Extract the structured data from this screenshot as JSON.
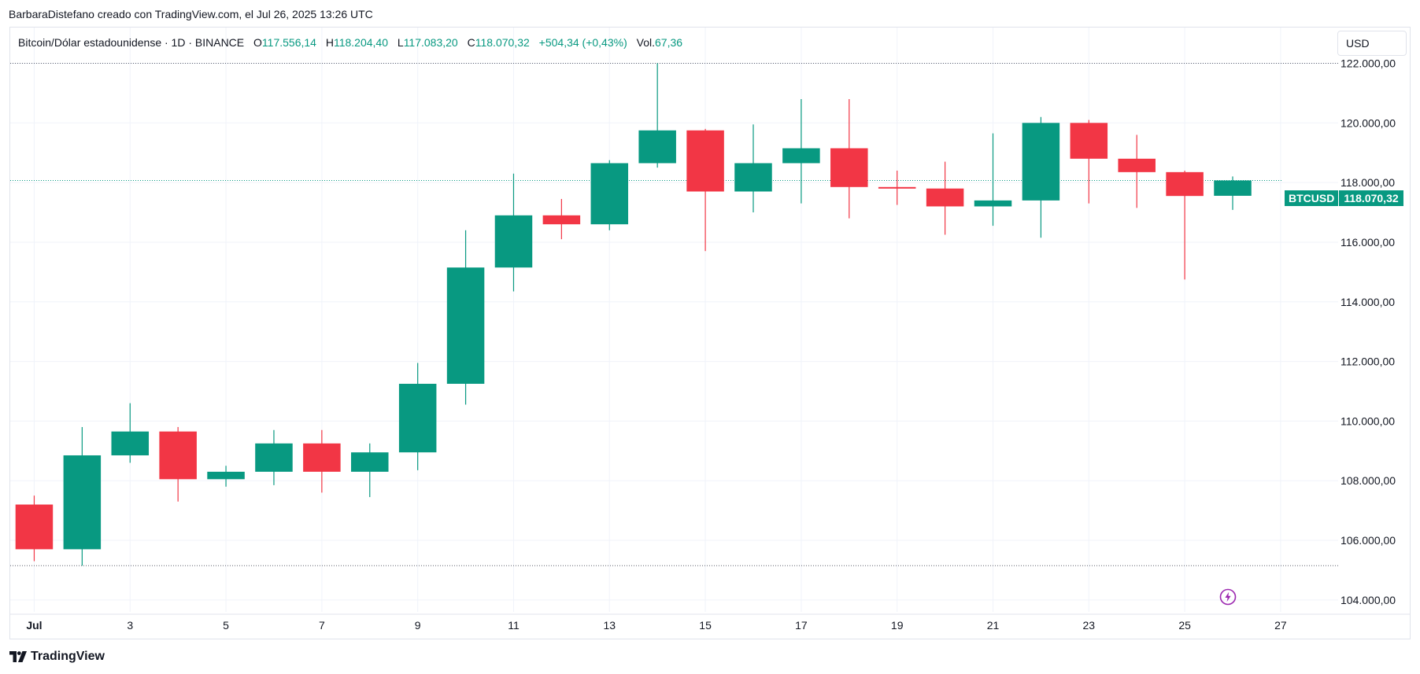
{
  "attribution": "BarbaraDistefano creado con TradingView.com, el Jul 26, 2025 13:26 UTC",
  "legend": {
    "symbol_desc": "Bitcoin/Dólar estadounidense · 1D · BINANCE",
    "o_label": "O",
    "o_value": "117.556,14",
    "h_label": "H",
    "h_value": "118.204,40",
    "l_label": "L",
    "l_value": "117.083,20",
    "c_label": "C",
    "c_value": "118.070,32",
    "change": "+504,34 (+0,43%)",
    "vol_label": "Vol.",
    "vol_value": "67,36"
  },
  "currency_button": "USD",
  "price_tag": {
    "symbol": "BTCUSD",
    "price": "118.070,32"
  },
  "brand": "TradingView",
  "colors": {
    "up": "#089981",
    "down": "#f23645",
    "grid": "#f0f3fa",
    "text": "#131722"
  },
  "icons": {
    "replay": "lightning-replay-icon",
    "logo": "tradingview-logo-icon"
  },
  "chart_data": {
    "type": "candlestick",
    "x_ticks": [
      {
        "day": 1,
        "label": "Jul"
      },
      {
        "day": 3,
        "label": "3"
      },
      {
        "day": 5,
        "label": "5"
      },
      {
        "day": 7,
        "label": "7"
      },
      {
        "day": 9,
        "label": "9"
      },
      {
        "day": 11,
        "label": "11"
      },
      {
        "day": 13,
        "label": "13"
      },
      {
        "day": 15,
        "label": "15"
      },
      {
        "day": 17,
        "label": "17"
      },
      {
        "day": 19,
        "label": "19"
      },
      {
        "day": 21,
        "label": "21"
      },
      {
        "day": 23,
        "label": "23"
      },
      {
        "day": 25,
        "label": "25"
      },
      {
        "day": 27,
        "label": "27"
      }
    ],
    "y_ticks": [
      {
        "value": 104000,
        "label": "104.000,00"
      },
      {
        "value": 106000,
        "label": "106.000,00"
      },
      {
        "value": 108000,
        "label": "108.000,00"
      },
      {
        "value": 110000,
        "label": "110.000,00"
      },
      {
        "value": 112000,
        "label": "112.000,00"
      },
      {
        "value": 114000,
        "label": "114.000,00"
      },
      {
        "value": 116000,
        "label": "116.000,00"
      },
      {
        "value": 118000,
        "label": "118.000,00"
      },
      {
        "value": 120000,
        "label": "120.000,00"
      },
      {
        "value": 122000,
        "label": "122.000,00"
      }
    ],
    "ylim": [
      103600,
      123200
    ],
    "xlim": [
      0.5,
      28.2
    ],
    "high_line": 122000,
    "low_line": 105150,
    "last_price": 118070.32,
    "candles": [
      {
        "day": 1,
        "o": 107200,
        "h": 107500,
        "l": 105300,
        "c": 105700
      },
      {
        "day": 2,
        "o": 105700,
        "h": 109800,
        "l": 105150,
        "c": 108850
      },
      {
        "day": 3,
        "o": 108850,
        "h": 110600,
        "l": 108600,
        "c": 109650
      },
      {
        "day": 4,
        "o": 109650,
        "h": 109800,
        "l": 107300,
        "c": 108050
      },
      {
        "day": 5,
        "o": 108050,
        "h": 108500,
        "l": 107800,
        "c": 108300
      },
      {
        "day": 6,
        "o": 108300,
        "h": 109700,
        "l": 107850,
        "c": 109250
      },
      {
        "day": 7,
        "o": 109250,
        "h": 109700,
        "l": 107600,
        "c": 108300
      },
      {
        "day": 8,
        "o": 108300,
        "h": 109250,
        "l": 107450,
        "c": 108950
      },
      {
        "day": 9,
        "o": 108950,
        "h": 111950,
        "l": 108350,
        "c": 111250
      },
      {
        "day": 10,
        "o": 111250,
        "h": 116400,
        "l": 110550,
        "c": 115150
      },
      {
        "day": 11,
        "o": 115150,
        "h": 118300,
        "l": 114350,
        "c": 116900
      },
      {
        "day": 12,
        "o": 116900,
        "h": 117450,
        "l": 116100,
        "c": 116600
      },
      {
        "day": 13,
        "o": 116600,
        "h": 118750,
        "l": 116400,
        "c": 118650
      },
      {
        "day": 14,
        "o": 118650,
        "h": 122000,
        "l": 118500,
        "c": 119750
      },
      {
        "day": 15,
        "o": 119750,
        "h": 119800,
        "l": 115700,
        "c": 117700
      },
      {
        "day": 16,
        "o": 117700,
        "h": 119950,
        "l": 117000,
        "c": 118650
      },
      {
        "day": 17,
        "o": 118650,
        "h": 120800,
        "l": 117300,
        "c": 119150
      },
      {
        "day": 18,
        "o": 119150,
        "h": 120800,
        "l": 116800,
        "c": 117850
      },
      {
        "day": 19,
        "o": 117850,
        "h": 118400,
        "l": 117250,
        "c": 117800
      },
      {
        "day": 20,
        "o": 117800,
        "h": 118700,
        "l": 116250,
        "c": 117200
      },
      {
        "day": 21,
        "o": 117200,
        "h": 119650,
        "l": 116550,
        "c": 117400
      },
      {
        "day": 22,
        "o": 117400,
        "h": 120200,
        "l": 116150,
        "c": 120000
      },
      {
        "day": 23,
        "o": 120000,
        "h": 120100,
        "l": 117300,
        "c": 118800
      },
      {
        "day": 24,
        "o": 118800,
        "h": 119600,
        "l": 117150,
        "c": 118350
      },
      {
        "day": 25,
        "o": 118350,
        "h": 118400,
        "l": 114750,
        "c": 117550
      },
      {
        "day": 26,
        "o": 117556.14,
        "h": 118204.4,
        "l": 117083.2,
        "c": 118070.32
      }
    ]
  }
}
